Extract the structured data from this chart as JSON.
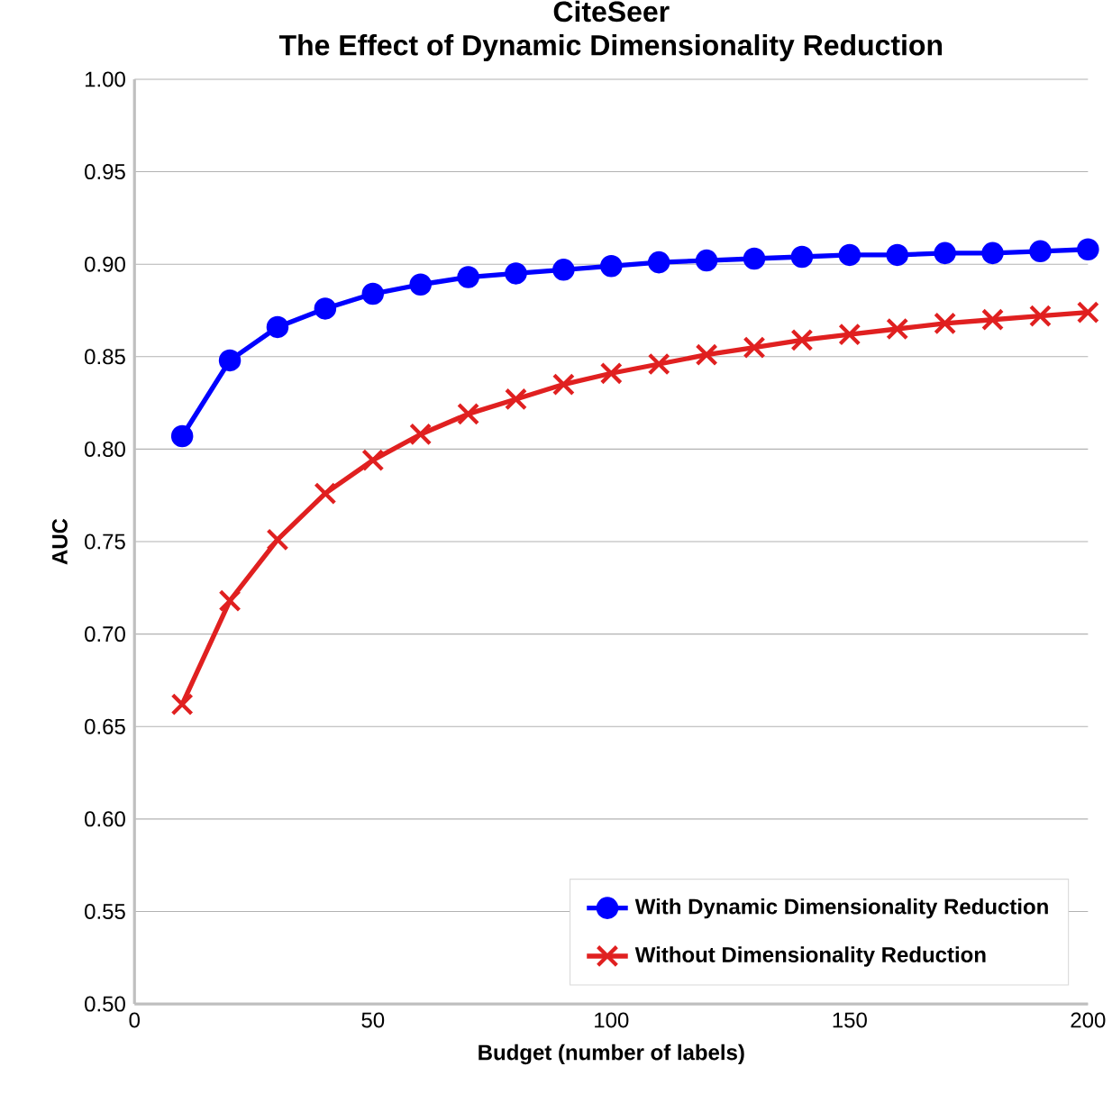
{
  "chart_data": {
    "type": "line",
    "title": "CiteSeer",
    "subtitle": "The Effect of Dynamic Dimensionality Reduction",
    "xlabel": "Budget (number of labels)",
    "ylabel": "AUC",
    "x": [
      10,
      20,
      30,
      40,
      50,
      60,
      70,
      80,
      90,
      100,
      110,
      120,
      130,
      140,
      150,
      160,
      170,
      180,
      190,
      200
    ],
    "series": [
      {
        "name": "With Dynamic Dimensionality Reduction",
        "color": "#0000ff",
        "marker": "circle",
        "values": [
          0.807,
          0.848,
          0.866,
          0.876,
          0.884,
          0.889,
          0.893,
          0.895,
          0.897,
          0.899,
          0.901,
          0.902,
          0.903,
          0.904,
          0.905,
          0.905,
          0.906,
          0.906,
          0.907,
          0.908
        ]
      },
      {
        "name": "Without Dimensionality Reduction",
        "color": "#e02020",
        "marker": "cross",
        "values": [
          0.662,
          0.718,
          0.751,
          0.776,
          0.794,
          0.808,
          0.819,
          0.827,
          0.835,
          0.841,
          0.846,
          0.851,
          0.855,
          0.859,
          0.862,
          0.865,
          0.868,
          0.87,
          0.872,
          0.874
        ]
      }
    ],
    "xlim": [
      0,
      200
    ],
    "xticks": [
      0,
      50,
      100,
      150,
      200
    ],
    "ylim": [
      0.5,
      1.0
    ],
    "yticks": [
      {
        "value": 0.5,
        "label": "0.50"
      },
      {
        "value": 0.55,
        "label": "0.55"
      },
      {
        "value": 0.6,
        "label": "0.60"
      },
      {
        "value": 0.65,
        "label": "0.65"
      },
      {
        "value": 0.7,
        "label": "0.70"
      },
      {
        "value": 0.75,
        "label": "0.75"
      },
      {
        "value": 0.8,
        "label": "0.80"
      },
      {
        "value": 0.85,
        "label": "0.85"
      },
      {
        "value": 0.9,
        "label": "0.90"
      },
      {
        "value": 0.95,
        "label": "0.95"
      },
      {
        "value": 1.0,
        "label": "1.00"
      }
    ],
    "grid": "y",
    "legend": "bottom right",
    "line_style": "solid"
  }
}
